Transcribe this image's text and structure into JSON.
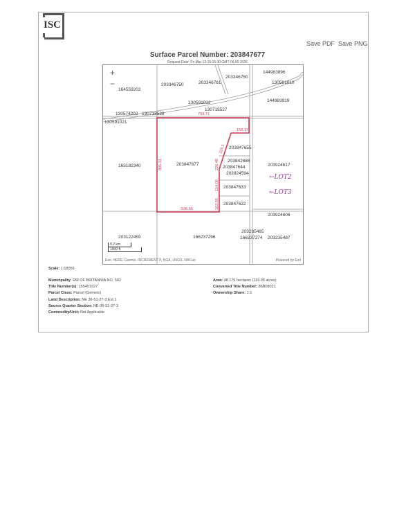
{
  "header": {
    "logo_text": "ISC",
    "save_pdf": "Save PDF",
    "save_png": "Save PNG",
    "title": "Surface Parcel Number: 203847677",
    "request_date": "Request Date: Fri Mar 13 15:15:30 GMT-06:00 2026"
  },
  "map": {
    "zoom_in": "+",
    "zoom_out": "−",
    "parcels": {
      "p1": "164559202",
      "p2": "203346750",
      "p3": "203346761",
      "p4": "203346750",
      "p5": "144983896",
      "p6": "130591010",
      "p7": "144983919",
      "p8": "130591032",
      "p9": "130718527",
      "p10": "130574202",
      "p11": "130718538",
      "p12": "130591021",
      "p13": "203847655",
      "p14": "165182340",
      "p15": "203847677",
      "p16": "203842686",
      "p17": "203847644",
      "p18": "203924594",
      "p19": "203924617",
      "p20": "203847633",
      "p21": "203847622",
      "p22": "203924606",
      "p23": "203122459",
      "p24": "166237296",
      "p25": "203235465",
      "p26": "166237274",
      "p27": "203235487"
    },
    "dimensions": {
      "top": "799.71",
      "notch": "158.17",
      "west": "805.31",
      "diag": "226.1",
      "d2": "226.48",
      "d3": "154.09",
      "d4": "153.95",
      "south": "536.66"
    },
    "handwritten": {
      "lot2": "←LOT2",
      "lot3": "←LOT3"
    },
    "scale_km": "0.2 km",
    "scale_ft": "1000 ft",
    "attribution": "Esri, HERE, Garmin, INCREMENT P, NGA, USGS, NRCan",
    "powered_by": "Powered by Esri",
    "parcel_color": "#d23a55"
  },
  "details": {
    "scale": {
      "label": "Scale:",
      "value": "1:18056"
    },
    "left": [
      {
        "label": "Municipality:",
        "value": "RM OF BRITANNIA NO. 502"
      },
      {
        "label": "Title Number(s):",
        "value": "155401927"
      },
      {
        "label": "Parcel Class:",
        "value": "Parcel (Generic)"
      },
      {
        "label": "Land Description:",
        "value": "NE 36-51-27-3 Ext 1"
      },
      {
        "label": "Source Quarter Section:",
        "value": "NE-36-51-27-3"
      },
      {
        "label": "Commodity/Unit:",
        "value": "Not Applicable"
      }
    ],
    "right": [
      {
        "label": "Area:",
        "value": "48.176 hectares (119.05 acres)"
      },
      {
        "label": "Converted Title Number:",
        "value": "86B08021"
      },
      {
        "label": "Ownership Share:",
        "value": "1:1"
      }
    ]
  }
}
